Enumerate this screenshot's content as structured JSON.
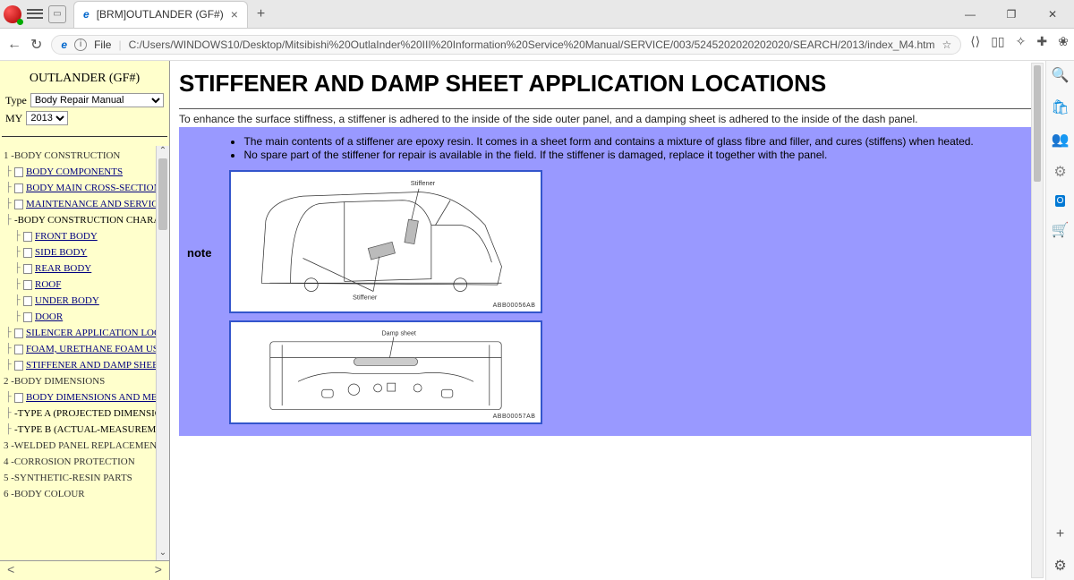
{
  "window": {
    "tab_title": "[BRM]OUTLANDER (GF#)",
    "minimize": "—",
    "maximize": "❐",
    "close": "✕"
  },
  "addr": {
    "file_label": "File",
    "url": "C:/Users/WINDOWS10/Desktop/Mitsibishi%20OutlaInder%20III%20Information%20Service%20Manual/SERVICE/003/5245202020202020/SEARCH/2013/index_M4.htm"
  },
  "sidebar": {
    "title": "OUTLANDER (GF#)",
    "type_label": "Type",
    "type_value": "Body Repair Manual",
    "my_label": "MY",
    "my_value": "2013",
    "sections": [
      {
        "label": "1 -BODY CONSTRUCTION",
        "items": [
          {
            "label": "BODY COMPONENTS"
          },
          {
            "label": "BODY MAIN CROSS-SECTIONAL VIE"
          },
          {
            "label": "MAINTENANCE AND SERVICEABIL"
          }
        ]
      },
      {
        "label": "-BODY CONSTRUCTION CHARACTERIS",
        "plain": true,
        "items": [
          {
            "label": "FRONT BODY",
            "sub": true
          },
          {
            "label": "SIDE BODY",
            "sub": true
          },
          {
            "label": "REAR BODY",
            "sub": true
          },
          {
            "label": "ROOF",
            "sub": true
          },
          {
            "label": "UNDER BODY",
            "sub": true
          },
          {
            "label": "DOOR",
            "sub": true
          }
        ]
      },
      {
        "label": "",
        "items": [
          {
            "label": "SILENCER APPLICATION LOCATION"
          },
          {
            "label": "FOAM, URETHANE FOAM USAGE L"
          },
          {
            "label": "STIFFENER AND DAMP SHEET APPL"
          }
        ]
      },
      {
        "label": "2 -BODY DIMENSIONS",
        "items": [
          {
            "label": "BODY DIMENSIONS AND MEASURE"
          }
        ]
      },
      {
        "label": "-TYPE A (PROJECTED DIMENSIONS)",
        "plain": true,
        "items": []
      },
      {
        "label": "-TYPE B (ACTUAL-MEASUREMENT DIM",
        "plain": true,
        "last": true,
        "items": []
      },
      {
        "label": "3 -WELDED PANEL REPLACEMENT",
        "items": []
      },
      {
        "label": "4 -CORROSION PROTECTION",
        "items": []
      },
      {
        "label": "5 -SYNTHETIC-RESIN PARTS",
        "items": []
      },
      {
        "label": "6 -BODY COLOUR",
        "items": []
      }
    ]
  },
  "content": {
    "heading": "STIFFENER AND DAMP SHEET APPLICATION LOCATIONS",
    "intro": "To enhance the surface stiffness, a stiffener is adhered to the inside of the side outer panel, and a damping sheet is adhered to the inside of the dash panel.",
    "note_label": "note",
    "bullets": [
      "The main contents of a stiffener are epoxy resin. It comes in a sheet form and contains a mixture of glass fibre and filler, and cures (stiffens) when heated.",
      "No spare part of the stiffener for repair is available in the field. If the stiffener is damaged, replace it together with the panel."
    ],
    "diag1_label1": "Stiffener",
    "diag1_label2": "Stiffener",
    "diag1_ref": "ABB00056AB",
    "diag2_label": "Damp sheet",
    "diag2_ref": "ABB00057AB"
  },
  "footer": {
    "back": "<",
    "fwd": ">"
  }
}
